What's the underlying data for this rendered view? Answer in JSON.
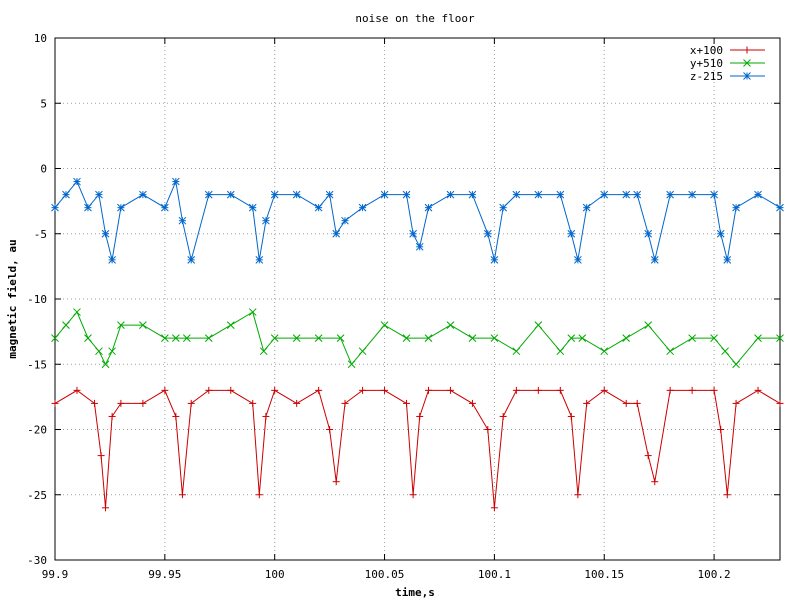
{
  "chart_data": {
    "type": "line",
    "title": "noise on the floor",
    "xlabel": "time,s",
    "ylabel": "magnetic field, au",
    "xlim": [
      99.9,
      100.23
    ],
    "ylim": [
      -30,
      10
    ],
    "xticks": [
      {
        "v": 99.9,
        "label": "99.9"
      },
      {
        "v": 99.95,
        "label": "99.95"
      },
      {
        "v": 100.0,
        "label": "100"
      },
      {
        "v": 100.05,
        "label": "100.05"
      },
      {
        "v": 100.1,
        "label": "100.1"
      },
      {
        "v": 100.15,
        "label": "100.15"
      },
      {
        "v": 100.2,
        "label": "100.2"
      }
    ],
    "yticks": [
      {
        "v": 10,
        "label": "10"
      },
      {
        "v": 5,
        "label": "5"
      },
      {
        "v": 0,
        "label": "0"
      },
      {
        "v": -5,
        "label": "-5"
      },
      {
        "v": -10,
        "label": "-10"
      },
      {
        "v": -15,
        "label": "-15"
      },
      {
        "v": -20,
        "label": "-20"
      },
      {
        "v": -25,
        "label": "-25"
      },
      {
        "v": -30,
        "label": "-30"
      }
    ],
    "grid": true,
    "legend_position": "top-right",
    "series": [
      {
        "name": "x+100",
        "color": "#cc0000",
        "marker": "plus",
        "x": [
          99.9,
          99.91,
          99.918,
          99.921,
          99.923,
          99.926,
          99.93,
          99.94,
          99.95,
          99.955,
          99.958,
          99.962,
          99.97,
          99.98,
          99.99,
          99.993,
          99.996,
          100.0,
          100.01,
          100.02,
          100.025,
          100.028,
          100.032,
          100.04,
          100.05,
          100.06,
          100.063,
          100.066,
          100.07,
          100.08,
          100.09,
          100.097,
          100.1,
          100.104,
          100.11,
          100.12,
          100.13,
          100.135,
          100.138,
          100.142,
          100.15,
          100.16,
          100.165,
          100.17,
          100.173,
          100.18,
          100.19,
          100.2,
          100.203,
          100.206,
          100.21,
          100.22,
          100.23
        ],
        "y": [
          -18,
          -17,
          -18,
          -22,
          -26,
          -19,
          -18,
          -18,
          -17,
          -19,
          -25,
          -18,
          -17,
          -17,
          -18,
          -25,
          -19,
          -17,
          -18,
          -17,
          -20,
          -24,
          -18,
          -17,
          -17,
          -18,
          -25,
          -19,
          -17,
          -17,
          -18,
          -20,
          -26,
          -19,
          -17,
          -17,
          -17,
          -19,
          -25,
          -18,
          -17,
          -18,
          -18,
          -22,
          -24,
          -17,
          -17,
          -17,
          -20,
          -25,
          -18,
          -17,
          -18
        ]
      },
      {
        "name": "y+510",
        "color": "#00aa00",
        "marker": "cross",
        "x": [
          99.9,
          99.905,
          99.91,
          99.915,
          99.92,
          99.923,
          99.926,
          99.93,
          99.94,
          99.95,
          99.955,
          99.96,
          99.97,
          99.98,
          99.99,
          99.995,
          100.0,
          100.01,
          100.02,
          100.03,
          100.035,
          100.04,
          100.05,
          100.06,
          100.07,
          100.08,
          100.09,
          100.1,
          100.11,
          100.12,
          100.13,
          100.135,
          100.14,
          100.15,
          100.16,
          100.17,
          100.18,
          100.19,
          100.2,
          100.205,
          100.21,
          100.22,
          100.23
        ],
        "y": [
          -13,
          -12,
          -11,
          -13,
          -14,
          -15,
          -14,
          -12,
          -12,
          -13,
          -13,
          -13,
          -13,
          -12,
          -11,
          -14,
          -13,
          -13,
          -13,
          -13,
          -15,
          -14,
          -12,
          -13,
          -13,
          -12,
          -13,
          -13,
          -14,
          -12,
          -14,
          -13,
          -13,
          -14,
          -13,
          -12,
          -14,
          -13,
          -13,
          -14,
          -15,
          -13,
          -13
        ]
      },
      {
        "name": "z-215",
        "color": "#0066cc",
        "marker": "star",
        "x": [
          99.9,
          99.905,
          99.91,
          99.915,
          99.92,
          99.923,
          99.926,
          99.93,
          99.94,
          99.95,
          99.955,
          99.958,
          99.962,
          99.97,
          99.98,
          99.99,
          99.993,
          99.996,
          100.0,
          100.01,
          100.02,
          100.025,
          100.028,
          100.032,
          100.04,
          100.05,
          100.06,
          100.063,
          100.066,
          100.07,
          100.08,
          100.09,
          100.097,
          100.1,
          100.104,
          100.11,
          100.12,
          100.13,
          100.135,
          100.138,
          100.142,
          100.15,
          100.16,
          100.165,
          100.17,
          100.173,
          100.18,
          100.19,
          100.2,
          100.203,
          100.206,
          100.21,
          100.22,
          100.23
        ],
        "y": [
          -3,
          -2,
          -1,
          -3,
          -2,
          -5,
          -7,
          -3,
          -2,
          -3,
          -1,
          -4,
          -7,
          -2,
          -2,
          -3,
          -7,
          -4,
          -2,
          -2,
          -3,
          -2,
          -5,
          -4,
          -3,
          -2,
          -2,
          -5,
          -6,
          -3,
          -2,
          -2,
          -5,
          -7,
          -3,
          -2,
          -2,
          -2,
          -5,
          -7,
          -3,
          -2,
          -2,
          -2,
          -5,
          -7,
          -2,
          -2,
          -2,
          -5,
          -7,
          -3,
          -2,
          -3
        ]
      }
    ]
  }
}
